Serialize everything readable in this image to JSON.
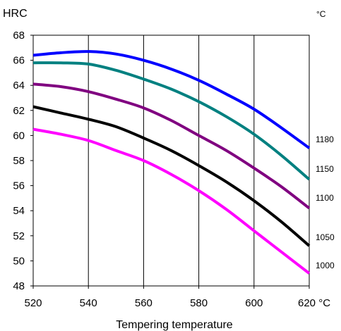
{
  "chart_data": {
    "type": "line",
    "title": "",
    "xlabel": "Tempering temperature",
    "ylabel": "HRC",
    "x_unit": "°C",
    "y2_unit": "°C",
    "xlim": [
      520,
      620
    ],
    "ylim": [
      48,
      68
    ],
    "x_ticks": [
      520,
      540,
      560,
      580,
      600,
      620
    ],
    "x_tick_labels": [
      "520",
      "540",
      "560",
      "580",
      "600",
      "620 °C"
    ],
    "y_ticks": [
      48,
      50,
      52,
      54,
      56,
      58,
      60,
      62,
      64,
      66,
      68
    ],
    "y_tick_labels": [
      "48",
      "50",
      "52",
      "54",
      "56",
      "58",
      "60",
      "62",
      "64",
      "66",
      "68"
    ],
    "grid": "vertical",
    "x": [
      520,
      530,
      540,
      550,
      560,
      570,
      580,
      590,
      600,
      610,
      620
    ],
    "series": [
      {
        "name": "1180",
        "color": "#0000ff",
        "values": [
          66.4,
          66.6,
          66.7,
          66.5,
          66.0,
          65.3,
          64.4,
          63.3,
          62.1,
          60.6,
          59.0
        ]
      },
      {
        "name": "1150",
        "color": "#008080",
        "values": [
          65.8,
          65.8,
          65.7,
          65.2,
          64.5,
          63.7,
          62.7,
          61.5,
          60.1,
          58.4,
          56.5
        ]
      },
      {
        "name": "1100",
        "color": "#800080",
        "values": [
          64.1,
          63.9,
          63.5,
          62.9,
          62.2,
          61.2,
          60.0,
          58.8,
          57.4,
          55.9,
          54.2
        ]
      },
      {
        "name": "1050",
        "color": "#000000",
        "values": [
          62.3,
          61.8,
          61.3,
          60.7,
          59.8,
          58.8,
          57.6,
          56.3,
          54.8,
          53.1,
          51.2
        ]
      },
      {
        "name": "1000",
        "color": "#ff00ff",
        "values": [
          60.5,
          60.1,
          59.6,
          58.8,
          58.0,
          56.9,
          55.6,
          54.1,
          52.4,
          50.7,
          49.0
        ]
      }
    ]
  }
}
